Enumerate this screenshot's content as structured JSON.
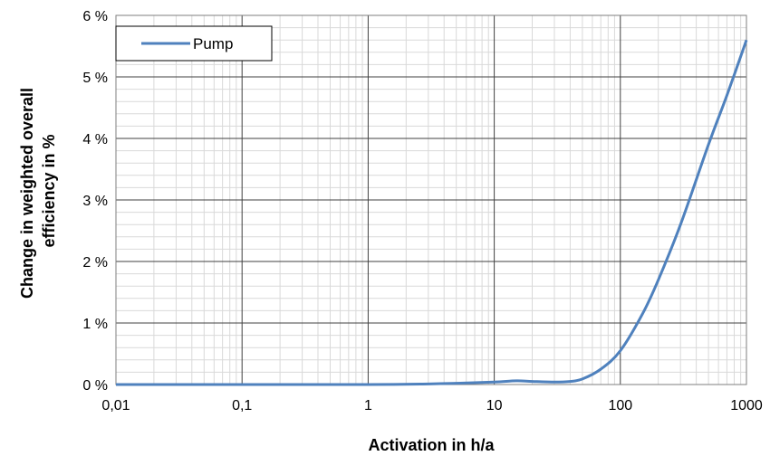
{
  "chart_data": {
    "type": "line",
    "xlabel": "Activation in h/a",
    "ylabel_lines": [
      "Change in weighted overall",
      "efficiency in %"
    ],
    "x_scale": "log",
    "xlim": [
      0.01,
      1000
    ],
    "ylim": [
      0,
      6
    ],
    "x_ticks": [
      {
        "value": 0.01,
        "label": "0,01"
      },
      {
        "value": 0.1,
        "label": "0,1"
      },
      {
        "value": 1,
        "label": "1"
      },
      {
        "value": 10,
        "label": "10"
      },
      {
        "value": 100,
        "label": "100"
      },
      {
        "value": 1000,
        "label": "1000"
      }
    ],
    "y_ticks": [
      {
        "value": 0,
        "label": "0 %"
      },
      {
        "value": 1,
        "label": "1 %"
      },
      {
        "value": 2,
        "label": "2 %"
      },
      {
        "value": 3,
        "label": "3 %"
      },
      {
        "value": 4,
        "label": "4 %"
      },
      {
        "value": 5,
        "label": "5 %"
      },
      {
        "value": 6,
        "label": "6 %"
      }
    ],
    "grid": true,
    "minor_grid": true,
    "legend_position": "top-left",
    "series": [
      {
        "name": "Pump",
        "color": "#4F81BD",
        "x": [
          0.01,
          0.1,
          1,
          3,
          5,
          10,
          15,
          20,
          30,
          40,
          50,
          70,
          100,
          150,
          200,
          300,
          500,
          700,
          1000
        ],
        "y": [
          0,
          0,
          0,
          0.01,
          0.02,
          0.04,
          0.06,
          0.05,
          0.04,
          0.05,
          0.09,
          0.25,
          0.55,
          1.15,
          1.7,
          2.6,
          3.9,
          4.7,
          5.6
        ]
      }
    ]
  }
}
